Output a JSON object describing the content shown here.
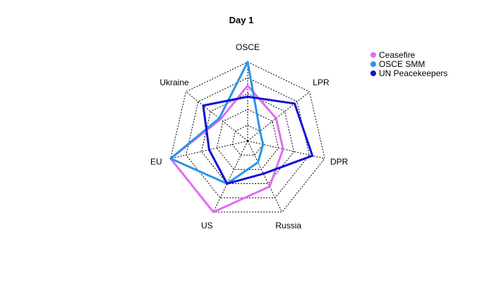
{
  "chart_data": {
    "type": "radar",
    "title": "Day 1",
    "axes": [
      "OSCE",
      "LPR",
      "DPR",
      "Russia",
      "US",
      "EU",
      "Ukraine"
    ],
    "range": [
      0,
      5
    ],
    "rings": 5,
    "grid": true,
    "legend_position": "top-right",
    "series": [
      {
        "name": "Ceasefire",
        "color": "#DD6EF0",
        "values": [
          3.5,
          2.3,
          2.3,
          3.2,
          5.0,
          5.0,
          2.2
        ]
      },
      {
        "name": "OSCE SMM",
        "color": "#2A95E8",
        "values": [
          5.0,
          1.0,
          1.0,
          1.5,
          3.0,
          5.0,
          2.3
        ]
      },
      {
        "name": "UN Peacekeepers",
        "color": "#1010D8",
        "values": [
          2.8,
          3.8,
          4.2,
          2.3,
          3.0,
          2.5,
          3.6
        ]
      }
    ]
  }
}
